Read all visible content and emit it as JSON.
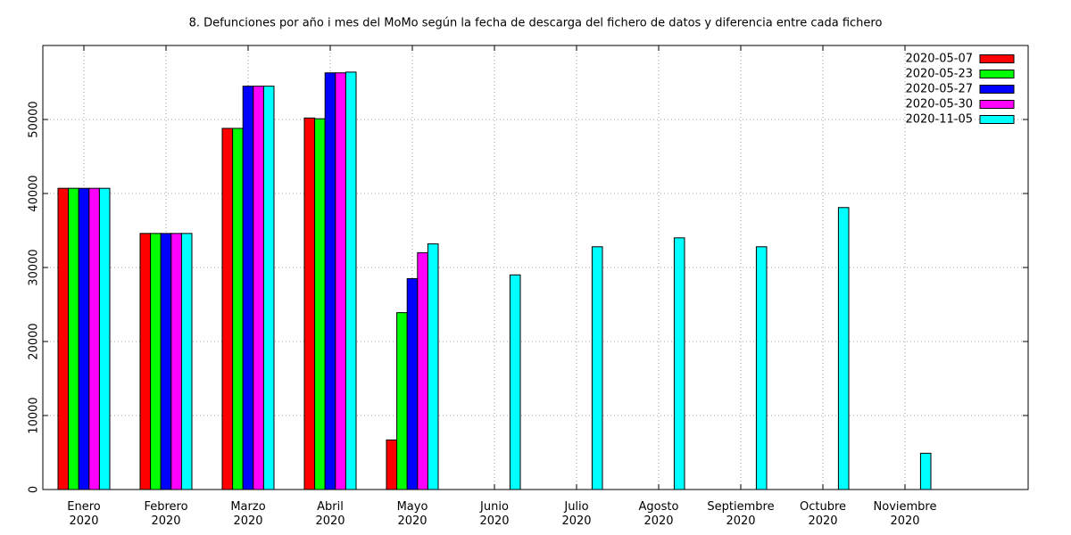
{
  "chart_data": {
    "type": "bar",
    "title": "8. Defunciones por año i mes del MoMo según la fecha de descarga del fichero de datos y diferencia entre cada fichero",
    "categories": [
      "Enero\n2020",
      "Febrero\n2020",
      "Marzo\n2020",
      "Abril\n2020",
      "Mayo\n2020",
      "Junio\n2020",
      "Julio\n2020",
      "Agosto\n2020",
      "Septiembre\n2020",
      "Octubre\n2020",
      "Noviembre\n2020",
      null
    ],
    "series": [
      {
        "name": "2020-05-07",
        "color": "#ff0000",
        "values": [
          40700,
          34600,
          48800,
          50200,
          6700,
          null,
          null,
          null,
          null,
          null,
          null,
          null
        ]
      },
      {
        "name": "2020-05-23",
        "color": "#00ff00",
        "values": [
          40700,
          34600,
          48800,
          50100,
          23900,
          null,
          null,
          null,
          null,
          null,
          null,
          null
        ]
      },
      {
        "name": "2020-05-27",
        "color": "#0000ff",
        "values": [
          40700,
          34600,
          54500,
          56300,
          28500,
          null,
          null,
          null,
          null,
          null,
          null,
          null
        ]
      },
      {
        "name": "2020-05-30",
        "color": "#ff00ff",
        "values": [
          40700,
          34600,
          54500,
          56300,
          32000,
          null,
          null,
          null,
          null,
          null,
          null,
          null
        ]
      },
      {
        "name": "2020-11-05",
        "color": "#00ffff",
        "values": [
          40700,
          34600,
          54500,
          56400,
          33200,
          29000,
          32800,
          34000,
          32800,
          38100,
          4900,
          null
        ]
      }
    ],
    "ylim": [
      0,
      60000
    ],
    "yticks": [
      0,
      10000,
      20000,
      30000,
      40000,
      50000
    ],
    "grid": true,
    "legend": "top-right"
  }
}
